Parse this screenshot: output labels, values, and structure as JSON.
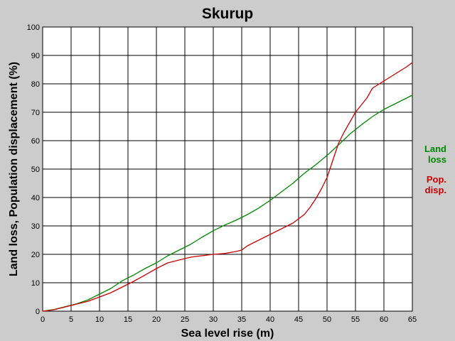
{
  "chart_data": {
    "type": "line",
    "title": "Skurup",
    "xlabel": "Sea level rise (m)",
    "ylabel": "Land loss, Population displacement (%)",
    "xlim": [
      0,
      65
    ],
    "ylim": [
      0,
      100
    ],
    "xticks": [
      "0",
      "5",
      "10",
      "15",
      "20",
      "25",
      "30",
      "35",
      "40",
      "45",
      "50",
      "55",
      "60",
      "65"
    ],
    "yticks": [
      "0",
      "10",
      "20",
      "30",
      "40",
      "50",
      "60",
      "70",
      "80",
      "90",
      "100"
    ],
    "grid": true,
    "legend_position": "right",
    "series": [
      {
        "name": "Land loss",
        "legend_lines": [
          "Land",
          "loss"
        ],
        "color": "#008800",
        "x": [
          0,
          2,
          4,
          6,
          8,
          10,
          12,
          14,
          16,
          18,
          20,
          22,
          24,
          26,
          28,
          30,
          32,
          34,
          36,
          38,
          40,
          42,
          44,
          46,
          48,
          50,
          52,
          54,
          56,
          58,
          60,
          62,
          64,
          65
        ],
        "y": [
          0,
          0.6,
          1.6,
          2.6,
          4,
          6,
          8,
          10.7,
          12.7,
          15,
          17,
          19.5,
          21.5,
          23.5,
          26,
          28.3,
          30.3,
          32,
          34,
          36.3,
          39,
          42,
          45,
          48.5,
          51.5,
          54.8,
          58.5,
          62.3,
          65.5,
          68.5,
          71,
          73,
          75,
          76
        ]
      },
      {
        "name": "Pop. disp.",
        "legend_lines": [
          "Pop.",
          "disp."
        ],
        "color": "#cc0000",
        "x": [
          0,
          2,
          4,
          6,
          8,
          10,
          12,
          14,
          16,
          18,
          20,
          22,
          24,
          26,
          28,
          30,
          32,
          34,
          35,
          36,
          38,
          40,
          42,
          44,
          46,
          47,
          48,
          49,
          50,
          51,
          52,
          53,
          54,
          55,
          56,
          57,
          58,
          60,
          62,
          64,
          65
        ],
        "y": [
          0,
          0.5,
          1.5,
          2.5,
          3.5,
          5,
          6.5,
          8.5,
          10.5,
          12.7,
          15,
          17,
          18,
          19,
          19.5,
          20,
          20.3,
          21,
          21.5,
          23,
          25,
          27,
          29,
          31,
          34,
          36.5,
          39.5,
          43,
          47,
          53,
          59,
          63,
          66.5,
          70,
          72.5,
          75,
          78.5,
          81,
          83.5,
          86,
          87.5
        ]
      }
    ]
  }
}
